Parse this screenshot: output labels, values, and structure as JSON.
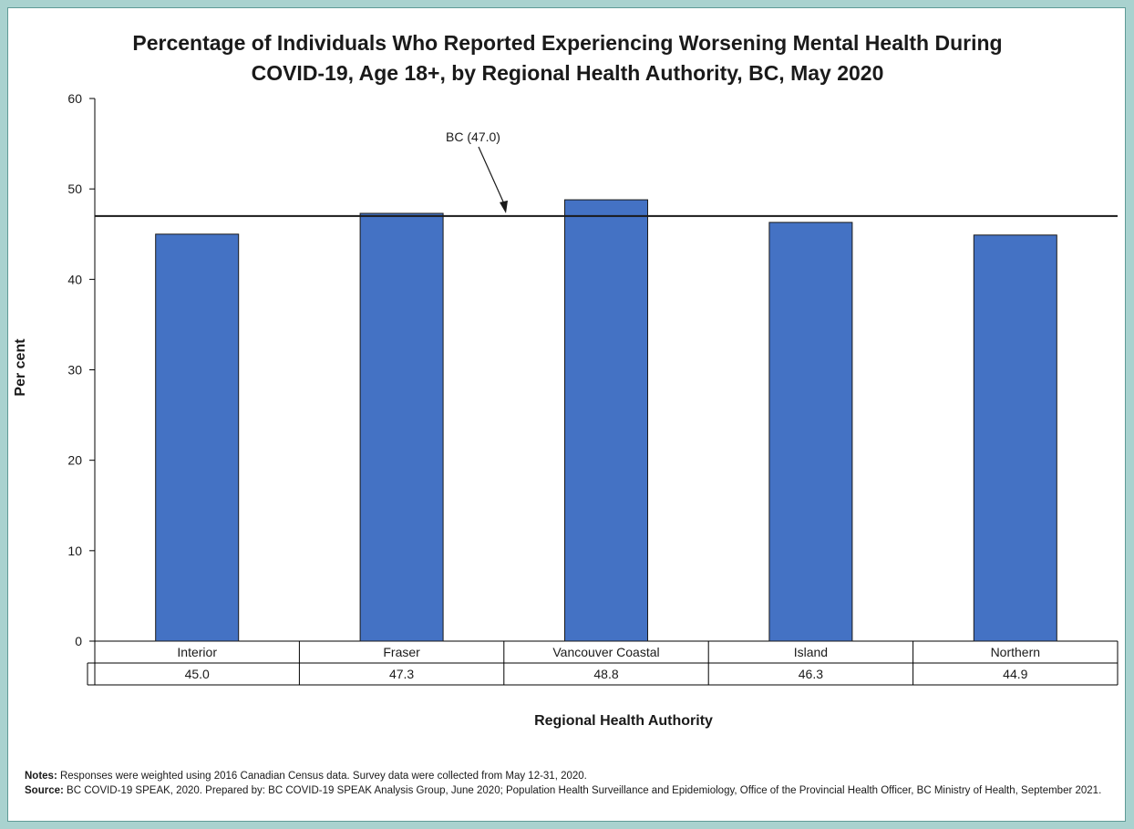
{
  "title_line1": "Percentage of Individuals Who Reported Experiencing Worsening Mental Health During",
  "title_line2": "COVID-19, Age 18+, by Regional Health Authority, BC, May 2020",
  "reference_line_label": "BC (47.0)",
  "notes": {
    "notes_label": "Notes:",
    "notes_text": " Responses were weighted using 2016 Canadian Census data. Survey data were collected from May 12-31, 2020.",
    "source_label": "Source:",
    "source_text": " BC COVID-19 SPEAK, 2020. Prepared by: BC COVID-19 SPEAK Analysis Group, June 2020; Population Health Surveillance and Epidemiology, Office of the Provincial Health Officer, BC Ministry of Health, September 2021."
  },
  "colors": {
    "bar": "#4472c4",
    "background": "#a9d2cf"
  },
  "chart_data": {
    "type": "bar",
    "title": "Percentage of Individuals Who Reported Experiencing Worsening Mental Health During COVID-19, Age 18+, by Regional Health Authority, BC, May 2020",
    "xlabel": "Regional Health Authority",
    "ylabel": "Per cent",
    "categories": [
      "Interior",
      "Fraser",
      "Vancouver Coastal",
      "Island",
      "Northern"
    ],
    "values": [
      45.0,
      47.3,
      48.8,
      46.3,
      44.9
    ],
    "value_labels": [
      "45.0",
      "47.3",
      "48.8",
      "46.3",
      "44.9"
    ],
    "ylim": [
      0,
      60
    ],
    "yticks": [
      0,
      10,
      20,
      30,
      40,
      50,
      60
    ],
    "reference_line": {
      "value": 47.0,
      "label": "BC (47.0)"
    },
    "data_table": true,
    "grid": false,
    "legend": "none"
  }
}
